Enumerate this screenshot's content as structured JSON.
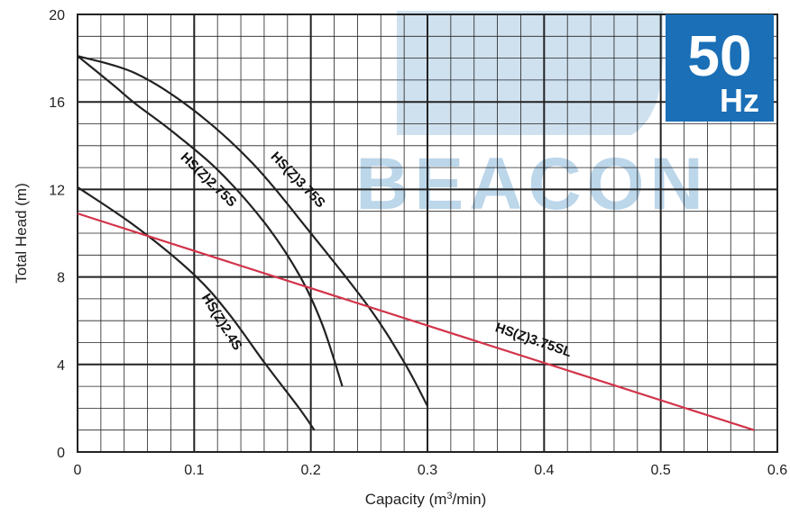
{
  "badge": {
    "frequency": "50",
    "unit": "Hz"
  },
  "watermark": {
    "text": "BEACON"
  },
  "colors": {
    "badge_bg": "#1a6fb6",
    "watermark": "#bcd6ea",
    "sl_line": "#d2344a",
    "curve": "#222222"
  },
  "chart_data": {
    "type": "line",
    "xlabel": "Capacity (m3/min)",
    "xlabel_parts": {
      "pre": "Capacity (m",
      "sup": "3",
      "post": "/min)"
    },
    "ylabel": "Total Head (m)",
    "xlim": [
      0,
      0.6
    ],
    "ylim": [
      0,
      20
    ],
    "x_ticks": [
      0,
      0.1,
      0.2,
      0.3,
      0.4,
      0.5,
      0.6
    ],
    "x_tick_labels": [
      "0",
      "0.1",
      "0.2",
      "0.3",
      "0.4",
      "0.5",
      "0.6"
    ],
    "y_ticks": [
      0,
      4,
      8,
      12,
      16,
      20
    ],
    "y_tick_labels": [
      "0",
      "4",
      "8",
      "12",
      "16",
      "20"
    ],
    "grid": true,
    "series": [
      {
        "name": "HS(Z)2.4S",
        "points": [
          [
            0,
            12.1
          ],
          [
            0.05,
            10.3
          ],
          [
            0.1,
            8.1
          ],
          [
            0.13,
            6.3
          ],
          [
            0.16,
            4.1
          ],
          [
            0.19,
            2.0
          ],
          [
            0.203,
            1.0
          ]
        ]
      },
      {
        "name": "HS(Z)2.75S",
        "points": [
          [
            0,
            18.1
          ],
          [
            0.03,
            16.8
          ],
          [
            0.05,
            15.9
          ],
          [
            0.08,
            14.7
          ],
          [
            0.12,
            12.9
          ],
          [
            0.16,
            10.5
          ],
          [
            0.19,
            8.1
          ],
          [
            0.21,
            5.8
          ],
          [
            0.227,
            3.0
          ]
        ]
      },
      {
        "name": "HS(Z)3.75S",
        "points": [
          [
            0,
            18.1
          ],
          [
            0.05,
            17.3
          ],
          [
            0.1,
            15.6
          ],
          [
            0.15,
            13.2
          ],
          [
            0.2,
            10.0
          ],
          [
            0.25,
            6.6
          ],
          [
            0.28,
            4.1
          ],
          [
            0.3,
            2.1
          ]
        ]
      },
      {
        "name": "HS(Z)3.75SL",
        "points": [
          [
            0,
            10.9
          ],
          [
            0.58,
            1.0
          ]
        ]
      }
    ]
  }
}
